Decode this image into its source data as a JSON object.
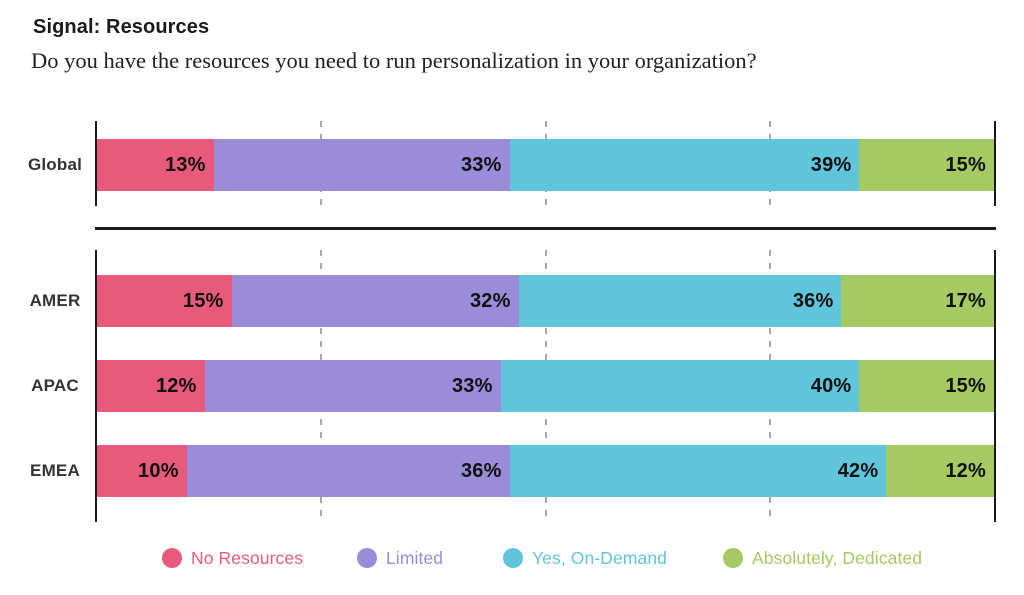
{
  "header": {
    "title": "Signal: Resources",
    "subtitle": "Do you have the resources you need to run personalization in your organization?"
  },
  "chart_data": {
    "type": "bar",
    "variant": "horizontal-stacked",
    "categories": [
      "Global",
      "AMER",
      "APAC",
      "EMEA"
    ],
    "series": [
      {
        "name": "No Resources",
        "color": "#E75A7C",
        "values": [
          13,
          15,
          12,
          10
        ]
      },
      {
        "name": "Limited",
        "color": "#9A8CD9",
        "values": [
          33,
          32,
          33,
          36
        ]
      },
      {
        "name": "Yes, On-Demand",
        "color": "#60C4DA",
        "values": [
          39,
          36,
          40,
          42
        ]
      },
      {
        "name": "Absolutely, Dedicated",
        "color": "#A5C963",
        "values": [
          15,
          17,
          15,
          12
        ]
      }
    ],
    "value_suffix": "%",
    "xlim": [
      0,
      100
    ],
    "gridlines_pct": [
      25,
      50,
      75
    ],
    "grid": "dashed-vertical",
    "legend_position": "bottom",
    "row_groups": [
      [
        0
      ],
      [
        1,
        2,
        3
      ]
    ]
  },
  "styles": {
    "axis_color": "#1a1a1a",
    "gridline_color": "#a9a9a9",
    "row_label_color": "#333333",
    "value_label_color": "#111111"
  }
}
